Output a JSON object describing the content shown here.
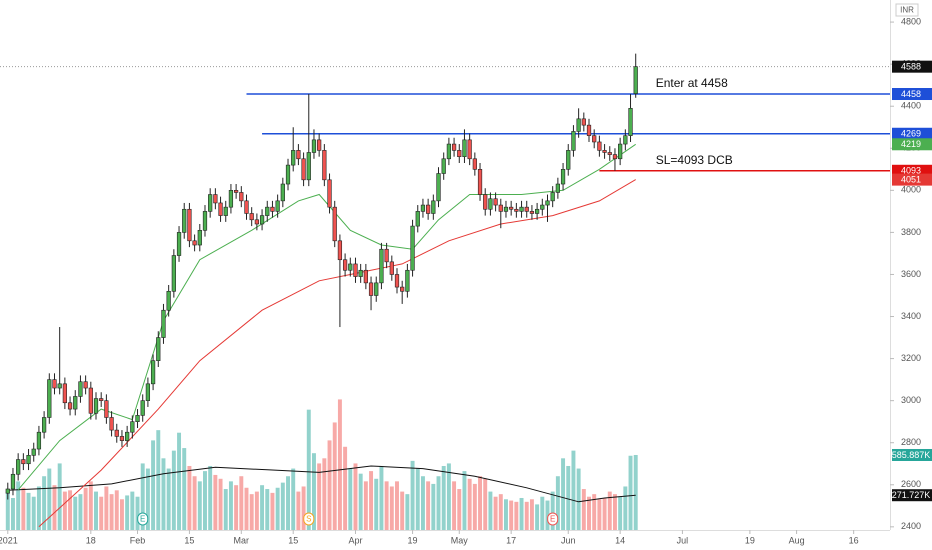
{
  "chart_data": {
    "type": "candlestick",
    "currency": "INR",
    "ylim": [
      2385,
      4905
    ],
    "yticks": [
      2400,
      2600,
      2800,
      3000,
      3200,
      3400,
      3600,
      3800,
      4000,
      4200,
      4400,
      4600,
      4800
    ],
    "xlim": [
      -1.5,
      170
    ],
    "xticks": [
      {
        "value": 0,
        "label": "2021"
      },
      {
        "value": 16,
        "label": "18"
      },
      {
        "value": 25,
        "label": "Feb"
      },
      {
        "value": 35,
        "label": "15"
      },
      {
        "value": 45,
        "label": "Mar"
      },
      {
        "value": 55,
        "label": "15"
      },
      {
        "value": 67,
        "label": "Apr"
      },
      {
        "value": 78,
        "label": "19"
      },
      {
        "value": 87,
        "label": "May"
      },
      {
        "value": 97,
        "label": "17"
      },
      {
        "value": 108,
        "label": "Jun"
      },
      {
        "value": 118,
        "label": "14"
      },
      {
        "value": 130,
        "label": "Jul"
      },
      {
        "value": 143,
        "label": "19"
      },
      {
        "value": 152,
        "label": "Aug"
      },
      {
        "value": 163,
        "label": "16"
      }
    ],
    "up_color": "#4caf50",
    "down_color": "#ef5350",
    "open": [
      2560,
      2580,
      2650,
      2720,
      2700,
      2740,
      2770,
      2850,
      2920,
      3100,
      3060,
      3080,
      2990,
      2960,
      3020,
      3090,
      3060,
      2940,
      3010,
      3000,
      2920,
      2860,
      2830,
      2810,
      2850,
      2900,
      2930,
      3000,
      3080,
      3190,
      3300,
      3430,
      3520,
      3690,
      3800,
      3910,
      3760,
      3740,
      3810,
      3900,
      3980,
      3940,
      3880,
      3920,
      4000,
      3990,
      3950,
      3890,
      3860,
      3840,
      3880,
      3920,
      3900,
      3950,
      4030,
      4120,
      4190,
      4150,
      4050,
      4180,
      4240,
      4190,
      4050,
      3920,
      3760,
      3670,
      3620,
      3650,
      3590,
      3620,
      3560,
      3500,
      3560,
      3720,
      3660,
      3600,
      3540,
      3520,
      3620,
      3830,
      3900,
      3930,
      3890,
      3950,
      4080,
      4150,
      4220,
      4190,
      4160,
      4240,
      4150,
      4100,
      3980,
      3910,
      3960,
      3930,
      3900,
      3920,
      3910,
      3900,
      3920,
      3900,
      3890,
      3910,
      3930,
      3950,
      3990,
      4030,
      4100,
      4190,
      4280,
      4340,
      4310,
      4260,
      4230,
      4190,
      4180,
      4170,
      4150,
      4220,
      4260,
      4460
    ],
    "high": [
      2610,
      2680,
      2750,
      2750,
      2770,
      2800,
      2880,
      2950,
      3130,
      3130,
      3350,
      3110,
      3020,
      3050,
      3120,
      3120,
      3090,
      3040,
      3040,
      3030,
      2950,
      2890,
      2860,
      2880,
      2930,
      2960,
      3030,
      3110,
      3220,
      3330,
      3460,
      3550,
      3720,
      3830,
      3940,
      3940,
      3790,
      3840,
      3930,
      4010,
      4010,
      3970,
      3950,
      4030,
      4030,
      4020,
      3980,
      3920,
      3890,
      3910,
      3950,
      3950,
      3980,
      4060,
      4150,
      4300,
      4220,
      4180,
      4458,
      4290,
      4270,
      4220,
      4080,
      3950,
      3790,
      3700,
      3680,
      3680,
      3650,
      3650,
      3590,
      3590,
      3750,
      3750,
      3690,
      3630,
      3570,
      3650,
      3860,
      3930,
      3960,
      3960,
      3980,
      4110,
      4180,
      4250,
      4250,
      4220,
      4290,
      4270,
      4180,
      4130,
      4010,
      3990,
      3990,
      3960,
      3950,
      3950,
      3940,
      3950,
      3950,
      3930,
      3940,
      3960,
      3980,
      4020,
      4060,
      4130,
      4220,
      4310,
      4390,
      4370,
      4340,
      4290,
      4260,
      4220,
      4210,
      4200,
      4250,
      4290,
      4458,
      4650
    ],
    "low": [
      2530,
      2550,
      2620,
      2670,
      2670,
      2710,
      2740,
      2820,
      2890,
      3030,
      3030,
      2960,
      2930,
      2930,
      2990,
      3030,
      2910,
      2910,
      2970,
      2890,
      2830,
      2800,
      2780,
      2780,
      2820,
      2870,
      2900,
      2970,
      3050,
      3160,
      3270,
      3400,
      3490,
      3660,
      3770,
      3730,
      3710,
      3710,
      3780,
      3870,
      3910,
      3850,
      3850,
      3890,
      3960,
      3920,
      3860,
      3830,
      3810,
      3810,
      3850,
      3870,
      3870,
      3920,
      4000,
      4090,
      4120,
      4020,
      4020,
      4150,
      4160,
      4020,
      3890,
      3730,
      3350,
      3590,
      3590,
      3560,
      3560,
      3530,
      3430,
      3470,
      3530,
      3630,
      3570,
      3510,
      3460,
      3490,
      3590,
      3800,
      3870,
      3860,
      3860,
      3920,
      4050,
      4120,
      4160,
      4130,
      4130,
      4120,
      4070,
      3950,
      3880,
      3880,
      3900,
      3820,
      3870,
      3880,
      3870,
      3870,
      3870,
      3860,
      3860,
      3880,
      3850,
      3920,
      3960,
      4000,
      4070,
      4160,
      4250,
      4280,
      4230,
      4200,
      4160,
      4150,
      4140,
      4093,
      4120,
      4190,
      4230,
      4440
    ],
    "close": [
      2580,
      2650,
      2720,
      2700,
      2740,
      2770,
      2850,
      2920,
      3100,
      3060,
      3080,
      2990,
      2960,
      3020,
      3090,
      3060,
      2940,
      3010,
      3000,
      2920,
      2860,
      2830,
      2810,
      2850,
      2900,
      2930,
      3000,
      3080,
      3190,
      3300,
      3430,
      3520,
      3690,
      3800,
      3910,
      3760,
      3740,
      3810,
      3900,
      3980,
      3940,
      3880,
      3920,
      4000,
      3990,
      3950,
      3890,
      3860,
      3840,
      3880,
      3920,
      3900,
      3950,
      4030,
      4120,
      4190,
      4150,
      4050,
      4180,
      4240,
      4190,
      4050,
      3920,
      3760,
      3670,
      3620,
      3650,
      3590,
      3620,
      3560,
      3500,
      3560,
      3720,
      3660,
      3600,
      3540,
      3520,
      3620,
      3830,
      3900,
      3930,
      3890,
      3950,
      4080,
      4150,
      4220,
      4190,
      4160,
      4240,
      4150,
      4100,
      3980,
      3910,
      3960,
      3930,
      3900,
      3920,
      3910,
      3900,
      3920,
      3900,
      3890,
      3910,
      3930,
      3950,
      3990,
      4030,
      4100,
      4190,
      4280,
      4340,
      4310,
      4260,
      4230,
      4190,
      4180,
      4170,
      4150,
      4220,
      4260,
      4390,
      4588
    ],
    "volume": {
      "vlim": [
        0,
        4140000
      ],
      "up_color": "rgba(38,166,154,0.5)",
      "down_color": "rgba(239,83,80,0.5)",
      "badge_color": "#26a69a",
      "last_label": "585.887K",
      "values": [
        300000,
        250000,
        380000,
        330000,
        290000,
        260000,
        340000,
        420000,
        480000,
        350000,
        520000,
        300000,
        310000,
        260000,
        280000,
        330000,
        380000,
        300000,
        260000,
        340000,
        280000,
        310000,
        240000,
        270000,
        300000,
        260000,
        520000,
        480000,
        700000,
        780000,
        560000,
        480000,
        620000,
        760000,
        640000,
        500000,
        420000,
        380000,
        460000,
        500000,
        430000,
        400000,
        320000,
        380000,
        350000,
        420000,
        330000,
        280000,
        300000,
        350000,
        320000,
        290000,
        330000,
        370000,
        420000,
        480000,
        300000,
        340000,
        940000,
        600000,
        520000,
        560000,
        700000,
        840000,
        1020000,
        650000,
        480000,
        520000,
        440000,
        380000,
        460000,
        400000,
        500000,
        380000,
        340000,
        380000,
        300000,
        280000,
        540000,
        480000,
        420000,
        380000,
        360000,
        420000,
        500000,
        520000,
        380000,
        320000,
        460000,
        400000,
        360000,
        420000,
        400000,
        300000,
        260000,
        280000,
        240000,
        230000,
        220000,
        250000,
        220000,
        240000,
        200000,
        260000,
        230000,
        300000,
        420000,
        560000,
        500000,
        620000,
        480000,
        320000,
        260000,
        280000,
        240000,
        250000,
        300000,
        280000,
        260000,
        340000,
        580000,
        585887
      ],
      "ma": {
        "color": "#111111",
        "last_label": "271.727K",
        "x": [
          0,
          10,
          20,
          30,
          40,
          50,
          60,
          70,
          80,
          90,
          100,
          110,
          115,
          121
        ],
        "values": [
          310000,
          330000,
          360000,
          440000,
          490000,
          470000,
          450000,
          500000,
          480000,
          420000,
          330000,
          220000,
          250000,
          271727
        ]
      }
    },
    "ma": [
      {
        "color": "#4caf50",
        "x": [
          2,
          10,
          18,
          24,
          30,
          37,
          47,
          56,
          60,
          66,
          72,
          78,
          83,
          89,
          99,
          107,
          114,
          121
        ],
        "values": [
          2576,
          2810,
          2960,
          2910,
          3380,
          3670,
          3810,
          3950,
          3980,
          3810,
          3740,
          3720,
          3860,
          3980,
          3980,
          4000,
          4100,
          4219
        ]
      },
      {
        "color": "#e53935",
        "x": [
          6,
          18,
          29,
          37,
          49,
          60,
          66,
          76,
          85,
          95,
          105,
          114,
          121
        ],
        "values": [
          2400,
          2670,
          2960,
          3190,
          3430,
          3570,
          3600,
          3650,
          3760,
          3840,
          3880,
          3950,
          4051
        ]
      }
    ],
    "hlines": [
      {
        "value": 4458,
        "start": 46,
        "color": "#1e4fd8",
        "label": "Enter at 4458"
      },
      {
        "value": 4269,
        "start": 49,
        "color": "#1e4fd8"
      },
      {
        "value": 4093,
        "start": 114,
        "color": "#e01010",
        "label": "SL=4093 DCB"
      }
    ],
    "events": [
      {
        "x": 26,
        "label": "E",
        "color": "#26a69a"
      },
      {
        "x": 58,
        "label": "S",
        "color": "#f5a623"
      },
      {
        "x": 105,
        "label": "E",
        "color": "#ef5350"
      }
    ]
  }
}
